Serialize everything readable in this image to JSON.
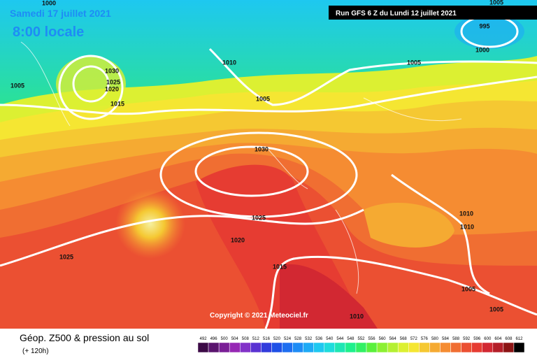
{
  "header": {
    "date": "Samedi 17 juillet 2021",
    "time": "8:00 locale",
    "run": "Run GFS 6 Z du Lundi 12 juillet 2021"
  },
  "map": {
    "isobars": [
      1000,
      1005,
      1030,
      1025,
      1020,
      1015,
      1010,
      1005,
      1030,
      1025,
      1020,
      1025,
      1015,
      1010,
      1005,
      995,
      1000,
      1005,
      1010,
      1010,
      1005,
      1005
    ],
    "copyright": "Copyright © 2021 Meteociel.fr"
  },
  "footer": {
    "title": "Géop. Z500 & pression au sol",
    "subtitle": "(+ 120h)"
  },
  "legend": {
    "labels": [
      492,
      496,
      500,
      504,
      508,
      512,
      516,
      520,
      524,
      528,
      532,
      536,
      540,
      544,
      548,
      552,
      556,
      560,
      564,
      568,
      572,
      576,
      580,
      584,
      588,
      592,
      596,
      600,
      604,
      608,
      612
    ],
    "colors": [
      "#3c0a46",
      "#5a146e",
      "#7a1e96",
      "#9628b4",
      "#8232c8",
      "#5a32d2",
      "#323cdc",
      "#1e50e6",
      "#1e6ef0",
      "#1e8cf5",
      "#1eaaf5",
      "#1ec8f0",
      "#1edcdc",
      "#1ee6b4",
      "#1ef08c",
      "#32f064",
      "#5af03c",
      "#8cf032",
      "#b4f032",
      "#dcf032",
      "#f5e632",
      "#f5c832",
      "#f5aa32",
      "#f58c32",
      "#f06e32",
      "#eb5032",
      "#e63c32",
      "#d22832",
      "#b41e28",
      "#8c1414",
      "#000000"
    ]
  }
}
